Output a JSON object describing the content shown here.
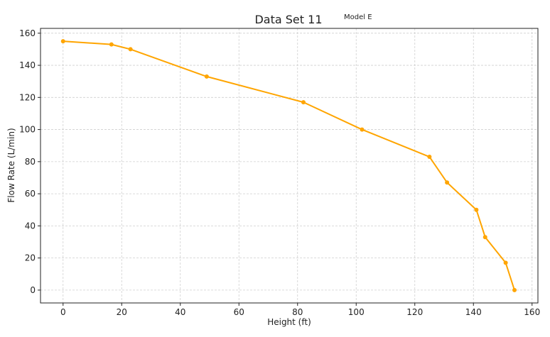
{
  "chart_data": {
    "type": "line",
    "title": "Data Set 11",
    "subtitle": "Model E",
    "xlabel": "Height (ft)",
    "ylabel": "Flow Rate (L/min)",
    "xlim": [
      -7.7,
      162
    ],
    "ylim": [
      -8,
      163
    ],
    "xticks": [
      0,
      20,
      40,
      60,
      80,
      100,
      120,
      140,
      160
    ],
    "yticks": [
      0,
      20,
      40,
      60,
      80,
      100,
      120,
      140,
      160
    ],
    "grid": true,
    "series": [
      {
        "color": "#FFA500",
        "x": [
          0,
          16.5,
          23,
          49,
          82,
          102,
          125,
          131,
          141,
          144,
          151,
          154
        ],
        "y": [
          155,
          153,
          150,
          133,
          117,
          100,
          83,
          67,
          50,
          33,
          17,
          0
        ]
      }
    ]
  }
}
